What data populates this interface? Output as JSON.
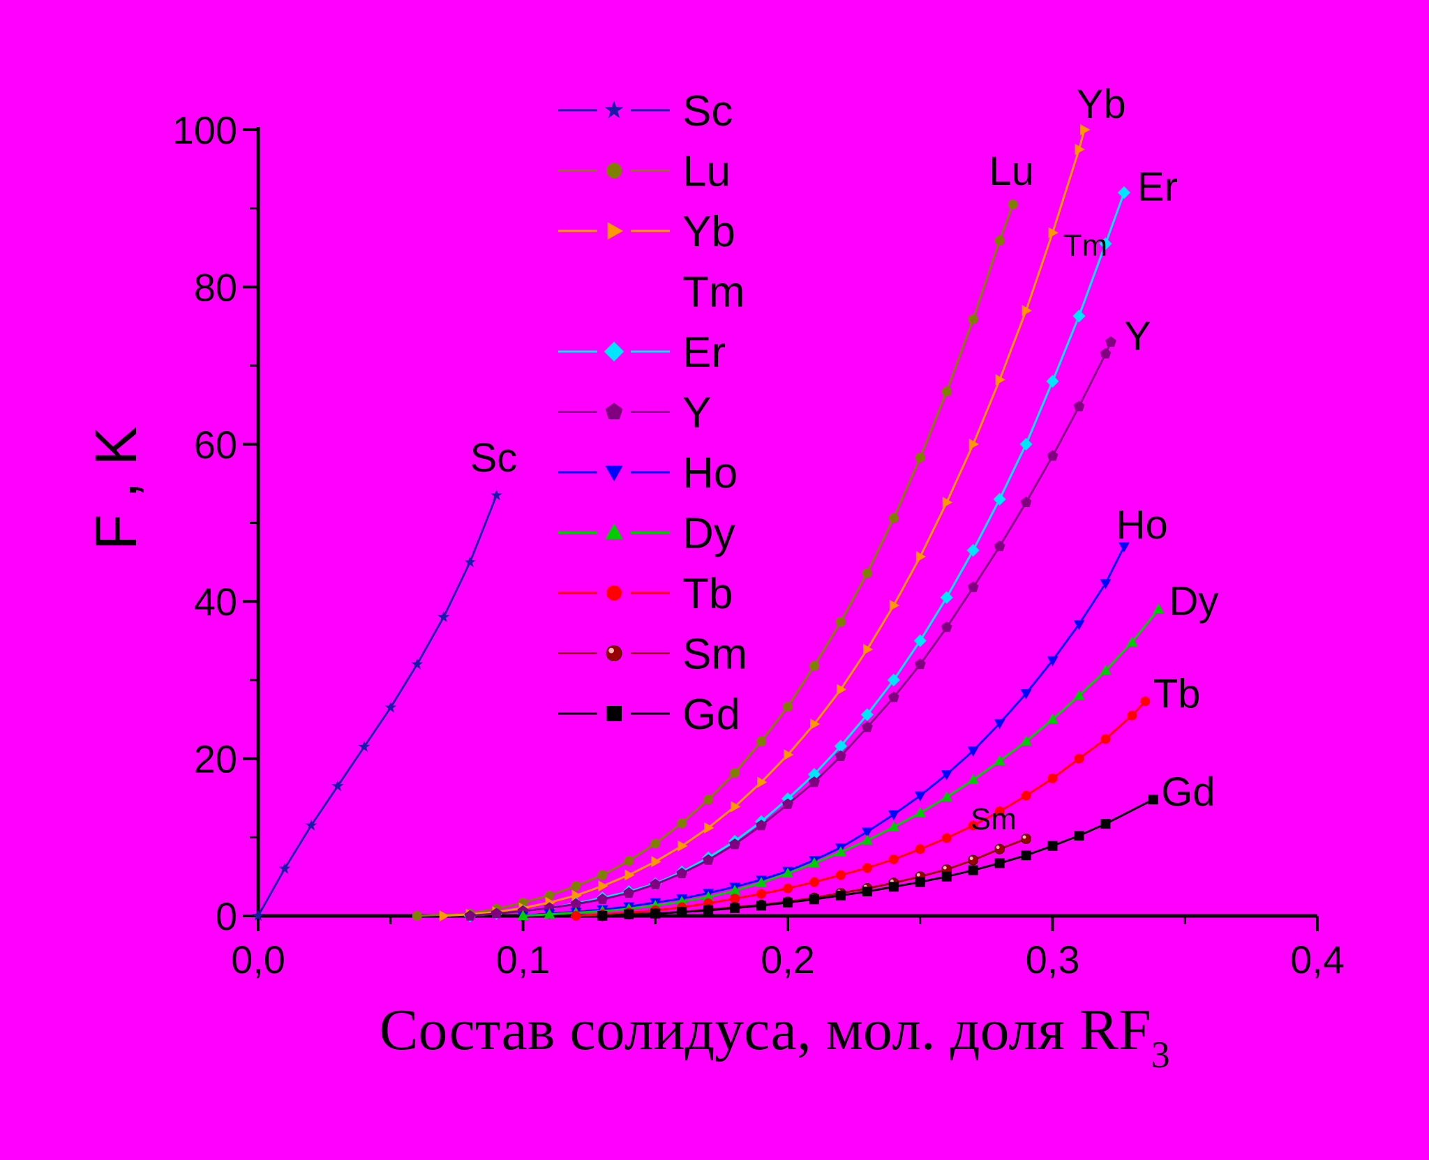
{
  "chart_data": {
    "type": "line",
    "xlabel": "Состав солидуса, мол. доля RF",
    "xlabel_subscript": "3",
    "ylabel": "F , K",
    "xlim": [
      0,
      0.4
    ],
    "ylim": [
      0,
      100
    ],
    "x_tick_labels": [
      "0,0",
      "0,1",
      "0,2",
      "0,3",
      "0,4"
    ],
    "y_tick_labels": [
      "0",
      "20",
      "40",
      "60",
      "80",
      "100"
    ],
    "grid": false,
    "legend_position": "top-center",
    "series": [
      {
        "name": "Sc",
        "color": "#1a1aa8",
        "marker": "star",
        "end_label": "Sc",
        "x": [
          0,
          0.01,
          0.02,
          0.03,
          0.04,
          0.05,
          0.06,
          0.07,
          0.08,
          0.09
        ],
        "y": [
          0,
          6,
          11.5,
          16.5,
          21.5,
          26.5,
          32,
          38,
          45,
          53.5
        ]
      },
      {
        "name": "Lu",
        "color": "#808000",
        "marker": "circle",
        "end_label": "Lu",
        "x": [
          0.06,
          0.08,
          0.09,
          0.1,
          0.11,
          0.12,
          0.13,
          0.14,
          0.15,
          0.16,
          0.17,
          0.18,
          0.19,
          0.2,
          0.21,
          0.22,
          0.23,
          0.24,
          0.25,
          0.26,
          0.27,
          0.28,
          0.285
        ],
        "y": [
          0,
          0.3,
          0.9,
          1.7,
          2.6,
          3.8,
          5.2,
          7,
          9.2,
          11.8,
          14.8,
          18.2,
          22.2,
          26.6,
          31.8,
          37.4,
          43.6,
          50.6,
          58.3,
          66.7,
          75.9,
          85.9,
          90.5
        ]
      },
      {
        "name": "Yb",
        "color": "#ff9900",
        "marker": "triangle-right",
        "end_label": "Yb",
        "x": [
          0.07,
          0.08,
          0.09,
          0.1,
          0.11,
          0.12,
          0.13,
          0.14,
          0.15,
          0.16,
          0.17,
          0.18,
          0.19,
          0.2,
          0.21,
          0.22,
          0.23,
          0.24,
          0.25,
          0.26,
          0.27,
          0.28,
          0.29,
          0.3,
          0.31,
          0.312
        ],
        "y": [
          0,
          0.2,
          0.5,
          1,
          1.7,
          2.6,
          3.8,
          5.2,
          6.9,
          8.9,
          11.2,
          13.9,
          17,
          20.5,
          24.4,
          28.8,
          33.9,
          39.5,
          45.7,
          52.6,
          60,
          68.2,
          77,
          86.9,
          97.5,
          100
        ]
      },
      {
        "name": "Tm",
        "color": "#ff00ff",
        "marker": "none",
        "end_label": "Tm",
        "x": [],
        "y": []
      },
      {
        "name": "Er",
        "color": "#00e5ff",
        "marker": "diamond",
        "end_label": "Er",
        "x": [
          0.08,
          0.09,
          0.1,
          0.11,
          0.12,
          0.13,
          0.14,
          0.15,
          0.16,
          0.17,
          0.18,
          0.19,
          0.2,
          0.21,
          0.22,
          0.23,
          0.24,
          0.25,
          0.26,
          0.27,
          0.28,
          0.29,
          0.3,
          0.31,
          0.32,
          0.327
        ],
        "y": [
          0,
          0.3,
          0.6,
          1,
          1.6,
          2.3,
          3.1,
          4.1,
          5.6,
          7.4,
          9.5,
          12,
          14.9,
          18,
          21.6,
          25.6,
          30,
          35,
          40.5,
          46.5,
          53,
          60,
          68,
          76.3,
          85.5,
          92
        ]
      },
      {
        "name": "Y",
        "color": "#800080",
        "marker": "pentagon",
        "end_label": "Y",
        "x": [
          0.08,
          0.09,
          0.1,
          0.11,
          0.12,
          0.13,
          0.14,
          0.15,
          0.16,
          0.17,
          0.18,
          0.19,
          0.2,
          0.21,
          0.22,
          0.23,
          0.24,
          0.25,
          0.26,
          0.27,
          0.28,
          0.29,
          0.3,
          0.31,
          0.32,
          0.322
        ],
        "y": [
          0,
          0.3,
          0.6,
          1,
          1.5,
          2.1,
          2.9,
          4,
          5.4,
          7.1,
          9.1,
          11.5,
          14.2,
          17,
          20.3,
          24,
          27.8,
          32,
          36.7,
          41.8,
          47,
          52.6,
          58.5,
          64.8,
          71.5,
          73
        ]
      },
      {
        "name": "Ho",
        "color": "#0000ff",
        "marker": "triangle-down",
        "end_label": "Ho",
        "x": [
          0.1,
          0.11,
          0.12,
          0.13,
          0.14,
          0.15,
          0.16,
          0.17,
          0.18,
          0.19,
          0.2,
          0.21,
          0.22,
          0.23,
          0.24,
          0.25,
          0.26,
          0.27,
          0.28,
          0.29,
          0.3,
          0.31,
          0.32,
          0.327
        ],
        "y": [
          0,
          0.3,
          0.5,
          0.8,
          1.2,
          1.7,
          2.2,
          2.9,
          3.7,
          4.6,
          5.7,
          7.1,
          8.7,
          10.7,
          12.9,
          15.3,
          18,
          21,
          24.5,
          28.3,
          32.5,
          37.1,
          42.3,
          47
        ]
      },
      {
        "name": "Dy",
        "color": "#00cc00",
        "marker": "triangle-up",
        "end_label": "Dy",
        "x": [
          0.1,
          0.11,
          0.12,
          0.13,
          0.14,
          0.15,
          0.16,
          0.17,
          0.18,
          0.19,
          0.2,
          0.21,
          0.22,
          0.23,
          0.24,
          0.25,
          0.26,
          0.27,
          0.28,
          0.29,
          0.3,
          0.31,
          0.32,
          0.33,
          0.34
        ],
        "y": [
          0,
          0.2,
          0.4,
          0.6,
          0.9,
          1.3,
          1.8,
          2.4,
          3.2,
          4.2,
          5.4,
          6.7,
          8.1,
          9.6,
          11.3,
          13.1,
          15.1,
          17.3,
          19.7,
          22.2,
          25,
          28,
          31.2,
          34.8,
          39
        ]
      },
      {
        "name": "Tb",
        "color": "#ff0000",
        "marker": "circle",
        "end_label": "Tb",
        "x": [
          0.12,
          0.13,
          0.14,
          0.15,
          0.16,
          0.17,
          0.18,
          0.19,
          0.2,
          0.21,
          0.22,
          0.23,
          0.24,
          0.25,
          0.26,
          0.27,
          0.28,
          0.29,
          0.3,
          0.31,
          0.32,
          0.33,
          0.335
        ],
        "y": [
          0,
          0.2,
          0.4,
          0.7,
          1.1,
          1.6,
          2.2,
          2.8,
          3.5,
          4.3,
          5.2,
          6.1,
          7.2,
          8.5,
          9.9,
          11.5,
          13.3,
          15.3,
          17.5,
          20,
          22.5,
          25.5,
          27.3
        ]
      },
      {
        "name": "Sm",
        "color": "#990000",
        "marker": "ball",
        "end_label": "Sm",
        "x": [
          0.13,
          0.14,
          0.15,
          0.16,
          0.17,
          0.18,
          0.19,
          0.2,
          0.21,
          0.22,
          0.23,
          0.24,
          0.25,
          0.26,
          0.27,
          0.28,
          0.29
        ],
        "y": [
          0,
          0.2,
          0.3,
          0.5,
          0.8,
          1.1,
          1.4,
          1.8,
          2.3,
          2.9,
          3.5,
          4.2,
          5,
          5.9,
          7.1,
          8.5,
          9.8
        ]
      },
      {
        "name": "Gd",
        "color": "#000000",
        "marker": "square",
        "end_label": "Gd",
        "x": [
          0.13,
          0.14,
          0.15,
          0.16,
          0.17,
          0.18,
          0.19,
          0.2,
          0.21,
          0.22,
          0.23,
          0.24,
          0.25,
          0.26,
          0.27,
          0.28,
          0.29,
          0.3,
          0.31,
          0.32,
          0.338
        ],
        "y": [
          0,
          0.2,
          0.3,
          0.5,
          0.7,
          1,
          1.3,
          1.7,
          2.1,
          2.6,
          3.1,
          3.7,
          4.3,
          5,
          5.8,
          6.7,
          7.7,
          8.9,
          10.2,
          11.7,
          14.8
        ]
      }
    ]
  }
}
